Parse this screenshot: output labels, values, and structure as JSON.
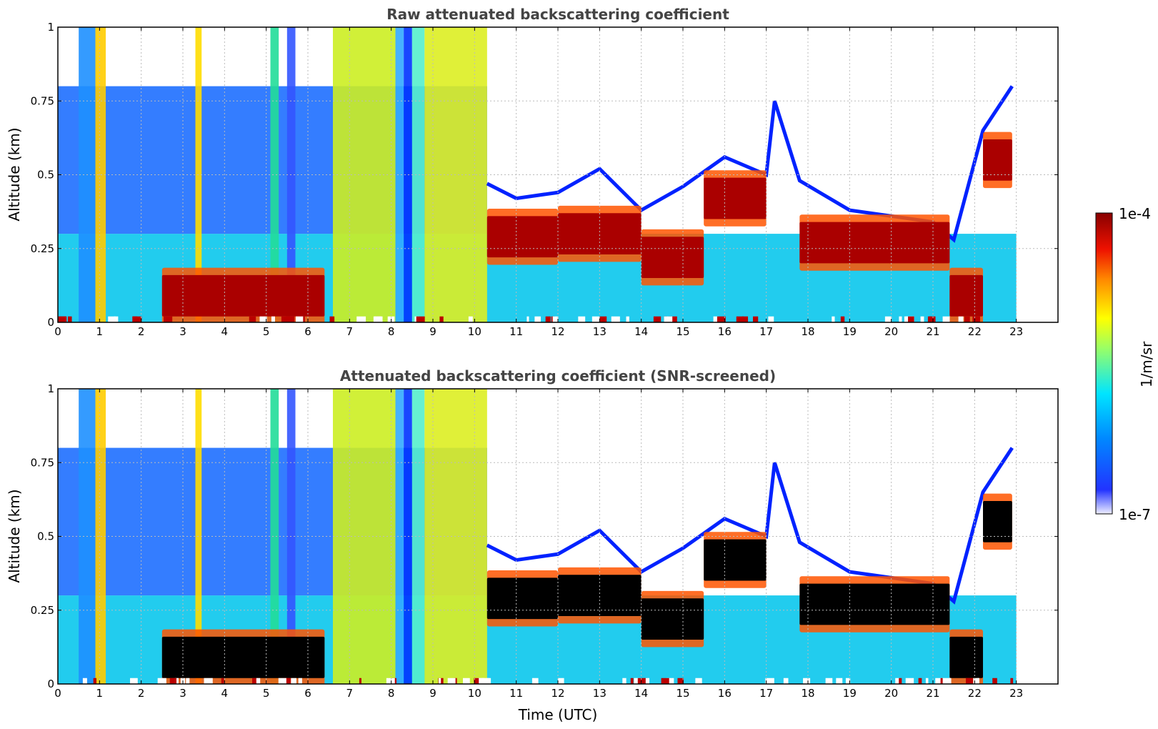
{
  "chart_data": [
    {
      "type": "heatmap",
      "title": "Raw attenuated backscattering coefficient",
      "xlabel": "",
      "ylabel": "Altitude (km)",
      "xlim": [
        0,
        24
      ],
      "ylim": [
        0,
        1
      ],
      "x_ticks": [
        "0",
        "1",
        "2",
        "3",
        "4",
        "5",
        "6",
        "7",
        "8",
        "9",
        "10",
        "11",
        "12",
        "13",
        "14",
        "15",
        "16",
        "17",
        "18",
        "19",
        "20",
        "21",
        "22",
        "23"
      ],
      "y_ticks": [
        "0",
        "0.25",
        "0.5",
        "0.75",
        "1"
      ],
      "grid": true,
      "data_end_time": 23,
      "layers": [
        {
          "start": 2.5,
          "end": 6.4,
          "altitude": 0.09
        },
        {
          "start": 10.3,
          "end": 12.0,
          "altitude": 0.29
        },
        {
          "start": 12.0,
          "end": 14.0,
          "altitude": 0.3
        },
        {
          "start": 14.0,
          "end": 15.5,
          "altitude": 0.22
        },
        {
          "start": 15.5,
          "end": 17.0,
          "altitude": 0.42
        },
        {
          "start": 17.8,
          "end": 21.4,
          "altitude": 0.27
        },
        {
          "start": 21.4,
          "end": 22.2,
          "altitude": 0.09
        },
        {
          "start": 22.2,
          "end": 22.9,
          "altitude": 0.55
        }
      ]
    },
    {
      "type": "heatmap",
      "title": "Attenuated backscattering coefficient (SNR-screened)",
      "xlabel": "Time (UTC)",
      "ylabel": "Altitude (km)",
      "xlim": [
        0,
        24
      ],
      "ylim": [
        0,
        1
      ],
      "x_ticks": [
        "0",
        "1",
        "2",
        "3",
        "4",
        "5",
        "6",
        "7",
        "8",
        "9",
        "10",
        "11",
        "12",
        "13",
        "14",
        "15",
        "16",
        "17",
        "18",
        "19",
        "20",
        "21",
        "22",
        "23"
      ],
      "y_ticks": [
        "0",
        "0.25",
        "0.5",
        "0.75",
        "1"
      ],
      "grid": true,
      "data_end_time": 23,
      "layers": [
        {
          "start": 2.5,
          "end": 6.4,
          "altitude": 0.09
        },
        {
          "start": 10.3,
          "end": 12.0,
          "altitude": 0.29
        },
        {
          "start": 12.0,
          "end": 14.0,
          "altitude": 0.3
        },
        {
          "start": 14.0,
          "end": 15.5,
          "altitude": 0.22
        },
        {
          "start": 15.5,
          "end": 17.0,
          "altitude": 0.42
        },
        {
          "start": 17.8,
          "end": 21.4,
          "altitude": 0.27
        },
        {
          "start": 21.4,
          "end": 22.2,
          "altitude": 0.09
        },
        {
          "start": 22.2,
          "end": 22.9,
          "altitude": 0.55
        }
      ]
    }
  ],
  "colorbar": {
    "label": "1/m/sr",
    "min_label": "1e-7",
    "max_label": "1e-4",
    "scale": "log",
    "range": [
      1e-07,
      0.0001
    ],
    "colormap": [
      "#eeeeff",
      "#0000ff",
      "#00aaff",
      "#00ffff",
      "#aaff55",
      "#ffff00",
      "#ffaa00",
      "#ff3300",
      "#990000"
    ]
  }
}
